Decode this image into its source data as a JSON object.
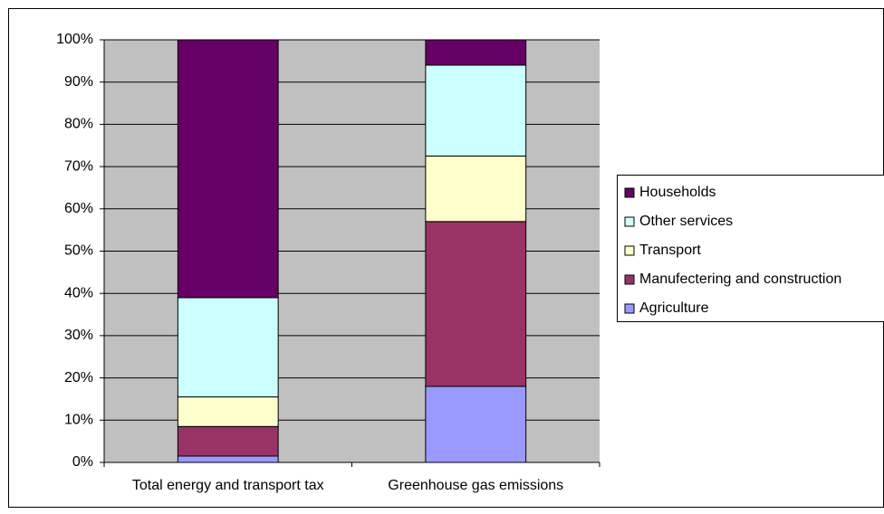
{
  "chart_data": {
    "type": "stacked_bar",
    "categories": [
      "Total energy and transport tax",
      "Greenhouse gas emissions"
    ],
    "series": [
      {
        "name": "Agriculture",
        "color": "#9999ff",
        "values": [
          1.5,
          18
        ]
      },
      {
        "name": "Manufectering and construction",
        "color": "#993366",
        "values": [
          7,
          39
        ]
      },
      {
        "name": "Transport",
        "color": "#ffffcc",
        "values": [
          7,
          15.5
        ]
      },
      {
        "name": "Other services",
        "color": "#ccffff",
        "values": [
          23.5,
          21.5
        ]
      },
      {
        "name": "Households",
        "color": "#660066",
        "values": [
          61,
          6
        ]
      }
    ],
    "ylim": [
      0,
      100
    ],
    "yticks": [
      {
        "value": 0,
        "label": "0%"
      },
      {
        "value": 10,
        "label": "10%"
      },
      {
        "value": 20,
        "label": "20%"
      },
      {
        "value": 30,
        "label": "30%"
      },
      {
        "value": 40,
        "label": "40%"
      },
      {
        "value": 50,
        "label": "50%"
      },
      {
        "value": 60,
        "label": "60%"
      },
      {
        "value": 70,
        "label": "70%"
      },
      {
        "value": 80,
        "label": "80%"
      },
      {
        "value": 90,
        "label": "90%"
      },
      {
        "value": 100,
        "label": "100%"
      }
    ],
    "grid": true,
    "legend": "right"
  }
}
